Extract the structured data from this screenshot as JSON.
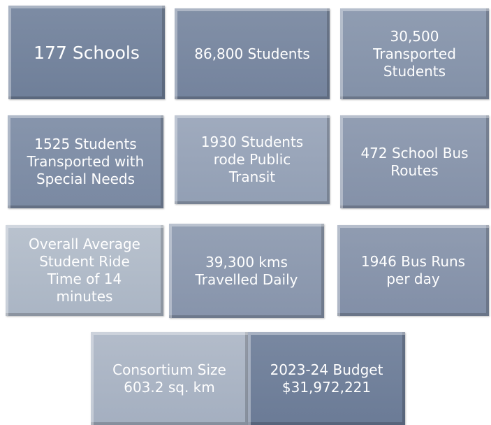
{
  "tiles": [
    {
      "lines": [
        "177 Schools"
      ]
    },
    {
      "lines": [
        "86,800 Students"
      ]
    },
    {
      "lines": [
        "30,500",
        "Transported",
        "Students"
      ]
    },
    {
      "lines": [
        "1525 Students",
        "Transported with",
        "Special Needs"
      ]
    },
    {
      "lines": [
        "1930 Students",
        "rode Public",
        "Transit"
      ]
    },
    {
      "lines": [
        "472 School Bus",
        "Routes"
      ]
    },
    {
      "lines": [
        "Overall Average",
        "Student Ride",
        "Time of 14",
        "minutes"
      ]
    },
    {
      "lines": [
        "39,300 kms",
        "Travelled Daily"
      ]
    },
    {
      "lines": [
        "1946 Bus Runs",
        "per day"
      ]
    },
    {
      "lines": [
        "Consortium Size",
        "603.2 sq. km"
      ]
    },
    {
      "lines": [
        "2023-24 Budget",
        "$31,972,221"
      ]
    }
  ]
}
